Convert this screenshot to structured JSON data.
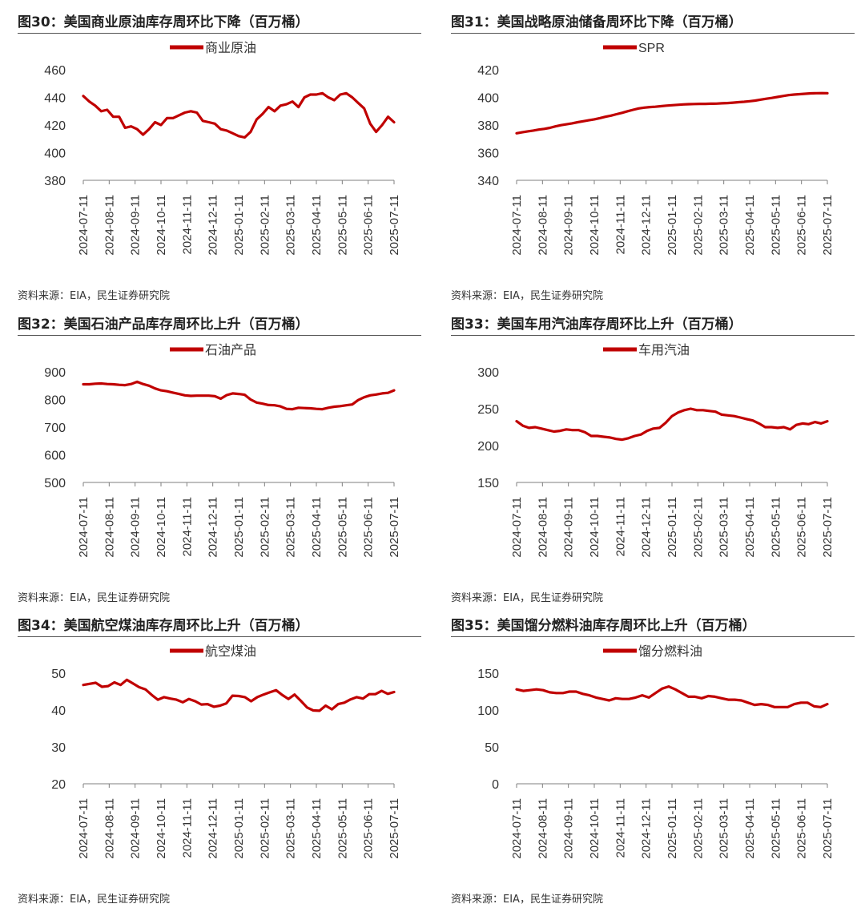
{
  "colors": {
    "line": "#C00000",
    "axis": "#7f7f7f",
    "title_rule": "#555555"
  },
  "x_ticks": [
    "2024-07-11",
    "2024-08-11",
    "2024-09-11",
    "2024-10-11",
    "2024-11-11",
    "2024-12-11",
    "2025-01-11",
    "2025-02-11",
    "2025-03-11",
    "2025-04-11",
    "2025-05-11",
    "2025-06-11",
    "2025-07-11"
  ],
  "panels": [
    {
      "title": "图30：美国商业原油库存周环比下降（百万桶）",
      "source": "资料来源：EIA，民生证券研究院"
    },
    {
      "title": "图31：美国战略原油储备周环比下降（百万桶）",
      "source": "资料来源：EIA，民生证券研究院"
    },
    {
      "title": "图32：美国石油产品库存周环比上升（百万桶）",
      "source": "资料来源：EIA，民生证券研究院"
    },
    {
      "title": "图33：美国车用汽油库存周环比上升（百万桶）",
      "source": "资料来源：EIA，民生证券研究院"
    },
    {
      "title": "图34：美国航空煤油库存周环比上升（百万桶）",
      "source": "资料来源：EIA，民生证券研究院"
    },
    {
      "title": "图35：美国馏分燃料油库存周环比上升（百万桶）",
      "source": "资料来源：EIA，民生证券研究院"
    }
  ],
  "chart_data": [
    {
      "type": "line",
      "series_name": "商业原油",
      "ylim": [
        380,
        460
      ],
      "yticks": [
        380,
        400,
        420,
        440,
        460
      ],
      "values": [
        441,
        437,
        434,
        430,
        431,
        426,
        426,
        418,
        419,
        417,
        413,
        417,
        422,
        420,
        425,
        425,
        427,
        429,
        430,
        429,
        423,
        422,
        421,
        417,
        416,
        414,
        412,
        411,
        415,
        424,
        428,
        433,
        430,
        434,
        435,
        437,
        433,
        440,
        442,
        442,
        443,
        440,
        438,
        442,
        443,
        440,
        436,
        432,
        421,
        415,
        420,
        426,
        422
      ]
    },
    {
      "type": "line",
      "series_name": "SPR",
      "ylim": [
        340,
        420
      ],
      "yticks": [
        340,
        360,
        380,
        400,
        420
      ],
      "values": [
        374,
        374.7,
        375.4,
        376,
        376.7,
        377.2,
        378,
        379,
        379.9,
        380.5,
        381.2,
        382,
        382.7,
        383.4,
        384.1,
        385,
        386,
        386.8,
        387.8,
        388.8,
        390,
        391,
        392,
        392.6,
        393,
        393.2,
        393.6,
        394,
        394.3,
        394.6,
        394.9,
        395.1,
        395.2,
        395.3,
        395.3,
        395.4,
        395.5,
        395.7,
        395.9,
        396.2,
        396.5,
        396.8,
        397.2,
        397.7,
        398.4,
        399,
        399.6,
        400.3,
        401,
        401.6,
        402,
        402.3,
        402.6,
        402.9,
        403,
        403.1,
        403
      ]
    },
    {
      "type": "line",
      "series_name": "石油产品",
      "ylim": [
        500,
        900
      ],
      "yticks": [
        500,
        600,
        700,
        800,
        900
      ],
      "values": [
        855,
        855,
        857,
        858,
        856,
        855,
        853,
        852,
        856,
        864,
        856,
        850,
        840,
        833,
        830,
        825,
        820,
        815,
        813,
        814,
        814,
        814,
        812,
        803,
        816,
        822,
        820,
        817,
        800,
        789,
        785,
        780,
        779,
        775,
        766,
        765,
        770,
        769,
        768,
        766,
        765,
        770,
        774,
        776,
        779,
        782,
        798,
        808,
        815,
        818,
        822,
        824,
        833
      ]
    },
    {
      "type": "line",
      "series_name": "车用汽油",
      "ylim": [
        150,
        300
      ],
      "yticks": [
        150,
        200,
        250,
        300
      ],
      "values": [
        233,
        227,
        224,
        225,
        223,
        221,
        219,
        220,
        222,
        221,
        221,
        218,
        213,
        213,
        212,
        211,
        209,
        208,
        210,
        213,
        215,
        220,
        223,
        224,
        231,
        240,
        245,
        248,
        250,
        248,
        248,
        247,
        246,
        242,
        241,
        240,
        238,
        236,
        234,
        230,
        225,
        225,
        224,
        225,
        222,
        228,
        230,
        229,
        232,
        230,
        233
      ]
    },
    {
      "type": "line",
      "series_name": "航空煤油",
      "ylim": [
        20,
        50
      ],
      "yticks": [
        20,
        30,
        40,
        50
      ],
      "values": [
        46.8,
        47.1,
        47.4,
        46.3,
        46.5,
        47.5,
        46.8,
        48.2,
        47.2,
        46.2,
        45.6,
        44.1,
        42.8,
        43.5,
        43.1,
        42.8,
        42.1,
        43,
        42.4,
        41.5,
        41.6,
        40.9,
        41.2,
        41.8,
        43.9,
        43.8,
        43.5,
        42.4,
        43.5,
        44.2,
        44.8,
        45.4,
        44.1,
        43,
        44.2,
        42.5,
        40.7,
        39.9,
        39.8,
        41.2,
        40.2,
        41.6,
        42,
        42.9,
        43.5,
        43.1,
        44.3,
        44.3,
        45.2,
        44.4,
        44.9
      ]
    },
    {
      "type": "line",
      "series_name": "馏分燃料油",
      "ylim": [
        0,
        150
      ],
      "yticks": [
        0,
        50,
        100,
        150
      ],
      "values": [
        128,
        126,
        127,
        128,
        127,
        124,
        123,
        123,
        125,
        125,
        122,
        120,
        117,
        115,
        113,
        116,
        115,
        115,
        117,
        120,
        117,
        123,
        129,
        132,
        128,
        123,
        118,
        118,
        116,
        119,
        118,
        116,
        114,
        114,
        113,
        110,
        107,
        108,
        107,
        104,
        104,
        104,
        108,
        110,
        110,
        105,
        104,
        108
      ]
    }
  ]
}
